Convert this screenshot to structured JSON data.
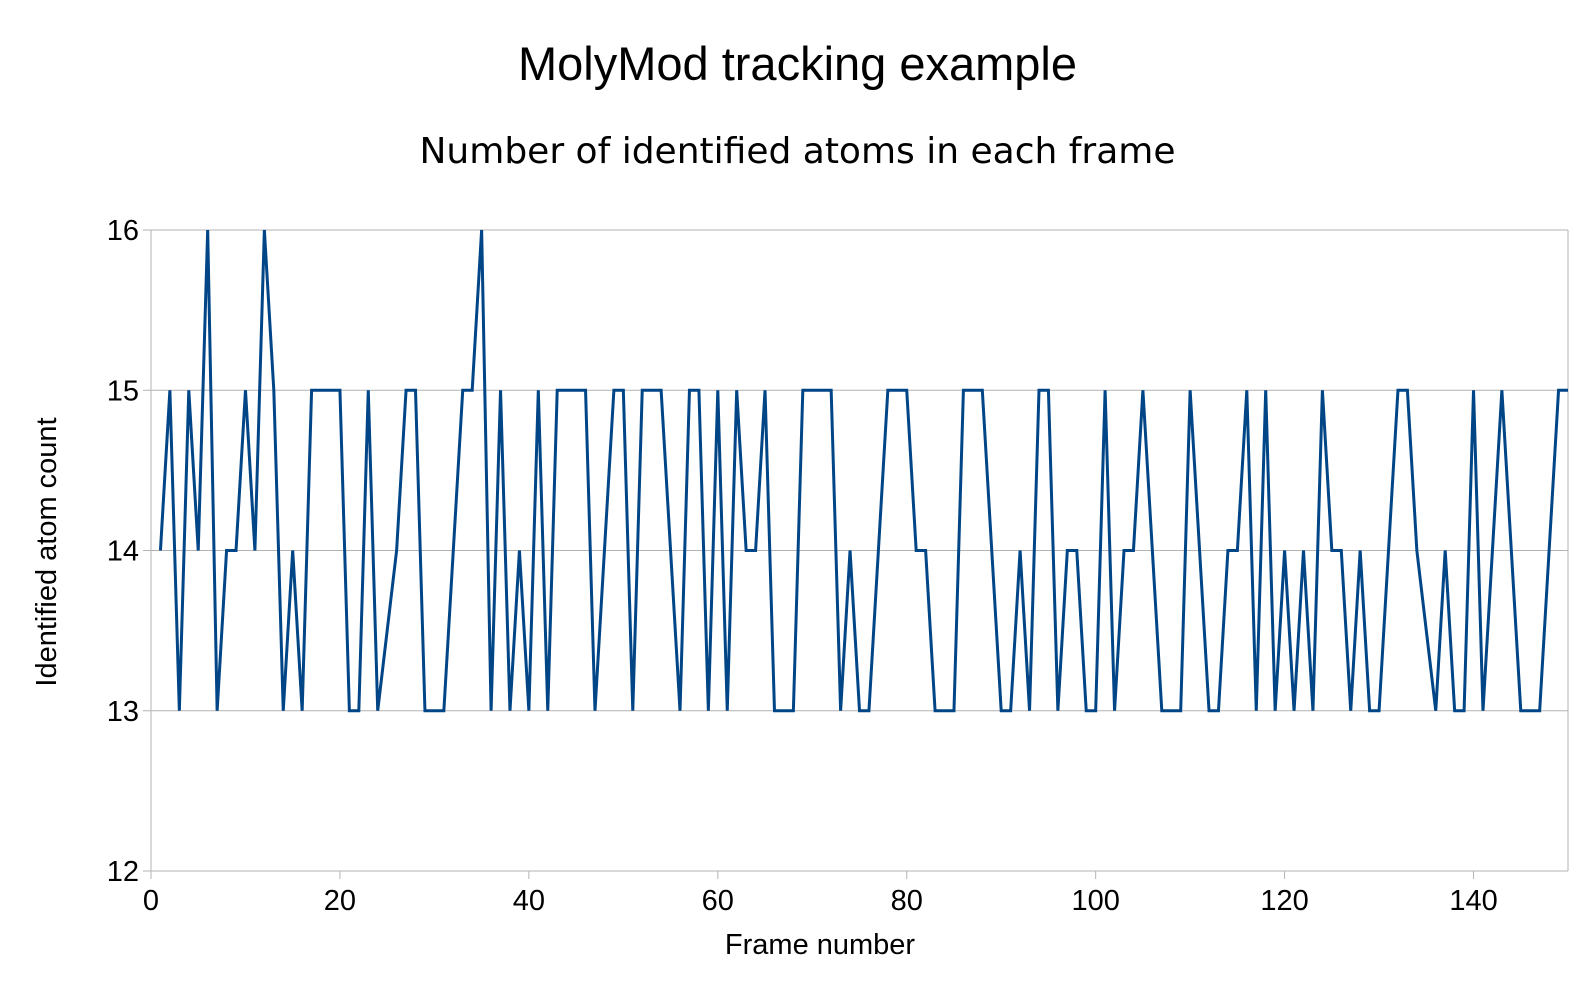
{
  "chart_data": {
    "type": "line",
    "title": "MolyMod tracking example",
    "subtitle": "Number of identified atoms in each frame",
    "xlabel": "Frame number",
    "ylabel": "Identified atom count",
    "xlim": [
      0,
      150
    ],
    "ylim": [
      12,
      16
    ],
    "xticks": [
      0,
      20,
      40,
      60,
      80,
      100,
      120,
      140
    ],
    "yticks": [
      12,
      13,
      14,
      15,
      16
    ],
    "grid": "horizontal",
    "legend": "none",
    "line_color": "#004586",
    "grid_color": "#b3b3b3",
    "axis_color": "#b3b3b3",
    "x": [
      1,
      2,
      3,
      4,
      5,
      6,
      7,
      8,
      9,
      10,
      11,
      12,
      13,
      14,
      15,
      16,
      17,
      18,
      19,
      20,
      21,
      22,
      23,
      24,
      25,
      26,
      27,
      28,
      29,
      30,
      31,
      32,
      33,
      34,
      35,
      36,
      37,
      38,
      39,
      40,
      41,
      42,
      43,
      44,
      45,
      46,
      47,
      48,
      49,
      50,
      51,
      52,
      53,
      54,
      55,
      56,
      57,
      58,
      59,
      60,
      61,
      62,
      63,
      64,
      65,
      66,
      67,
      68,
      69,
      70,
      71,
      72,
      73,
      74,
      75,
      76,
      77,
      78,
      79,
      80,
      81,
      82,
      83,
      84,
      85,
      86,
      87,
      88,
      89,
      90,
      91,
      92,
      93,
      94,
      95,
      96,
      97,
      98,
      99,
      100,
      101,
      102,
      103,
      104,
      105,
      106,
      107,
      108,
      109,
      110,
      111,
      112,
      113,
      114,
      115,
      116,
      117,
      118,
      119,
      120,
      121,
      122,
      123,
      124,
      125,
      126,
      127,
      128,
      129,
      130,
      131,
      132,
      133,
      134,
      135,
      136,
      137,
      138,
      139,
      140,
      141,
      142,
      143,
      144,
      145,
      146,
      147,
      148,
      149,
      150
    ],
    "values": [
      14,
      15,
      13,
      15,
      14,
      16,
      13,
      14,
      14,
      15,
      14,
      16,
      15,
      13,
      14,
      13,
      15,
      15,
      15,
      15,
      13,
      13,
      15,
      13,
      13.5,
      14,
      15,
      15,
      13,
      13,
      13,
      14,
      15,
      15,
      16,
      13,
      15,
      13,
      14,
      13,
      15,
      13,
      15,
      15,
      15,
      15,
      13,
      14,
      15,
      15,
      13,
      15,
      15,
      15,
      14,
      13,
      15,
      15,
      13,
      15,
      13,
      15,
      14,
      14,
      15,
      13,
      13,
      13,
      15,
      15,
      15,
      15,
      13,
      14,
      13,
      13,
      14,
      15,
      15,
      15,
      14,
      14,
      13,
      13,
      13,
      15,
      15,
      15,
      14,
      13,
      13,
      14,
      13,
      15,
      15,
      13,
      14,
      14,
      13,
      13,
      15,
      13,
      14,
      14,
      15,
      14,
      13,
      13,
      13,
      15,
      14,
      13,
      13,
      14,
      14,
      15,
      13,
      15,
      13,
      14,
      13,
      14,
      13,
      15,
      14,
      14,
      13,
      14,
      13,
      13,
      14,
      15,
      15,
      14,
      13.5,
      13,
      14,
      13,
      13,
      15,
      13,
      14,
      15,
      14,
      13,
      13,
      13,
      14,
      15,
      15
    ]
  }
}
